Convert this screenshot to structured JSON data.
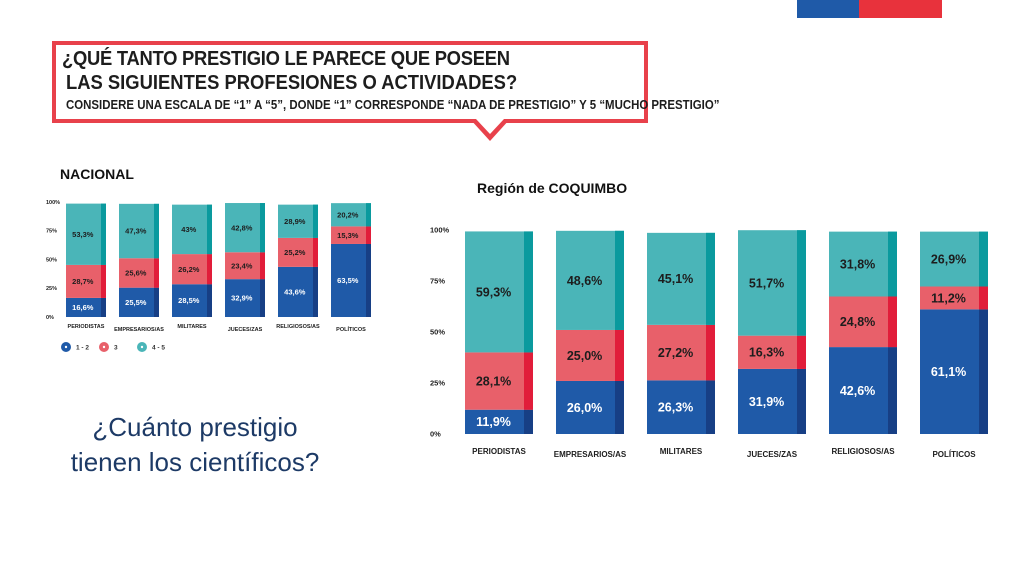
{
  "header": {
    "question_line1": "¿QUÉ TANTO PRESTIGIO LE PARECE QUE POSEEN",
    "question_line2": "LAS SIGUIENTES PROFESIONES O ACTIVIDADES?",
    "question_line3": "CONSIDERE UNA ESCALA DE “1” A “5”, DONDE “1” CORRESPONDE “NADA DE PRESTIGIO” Y 5 “MUCHO PRESTIGIO”"
  },
  "labels": {
    "nacional": "NACIONAL",
    "region": "Región de COQUIMBO",
    "big_question": "¿Cuánto prestigio tienen los científicos?"
  },
  "colors": {
    "low": "#1f5aa8",
    "low_dark": "#173f85",
    "mid": "#e8606a",
    "mid_dark": "#e11d3a",
    "high": "#4ab5b8",
    "high_dark": "#0a9a9e",
    "brand_blue": "#1f5aa8",
    "brand_red": "#e8323c"
  },
  "chart_data": [
    {
      "type": "bar",
      "stacked": true,
      "title": "NACIONAL",
      "categories": [
        "PERIODISTAS",
        "EMPRESARIOS/AS",
        "MILITARES",
        "JUECES/ZAS",
        "RELIGIOSOS/AS",
        "POLÍTICOS"
      ],
      "series": [
        {
          "name": "1 - 2",
          "values": [
            16.6,
            25.5,
            28.5,
            32.9,
            43.6,
            63.5
          ],
          "labels": [
            "16,6%",
            "25,5%",
            "28,5%",
            "32,9%",
            "43,6%",
            "63,5%"
          ]
        },
        {
          "name": "3",
          "values": [
            28.7,
            25.6,
            26.2,
            23.4,
            25.2,
            15.3
          ],
          "labels": [
            "28,7%",
            "25,6%",
            "26,2%",
            "23,4%",
            "25,2%",
            "15,3%"
          ]
        },
        {
          "name": "4 - 5",
          "values": [
            53.3,
            47.3,
            43.0,
            42.8,
            28.9,
            20.2
          ],
          "labels": [
            "53,3%",
            "47,3%",
            "43%",
            "42,8%",
            "28,9%",
            "20,2%"
          ]
        }
      ],
      "yticks": [
        "0%",
        "25%",
        "50%",
        "75%",
        "100%"
      ],
      "ylim": [
        0,
        100
      ],
      "legend": [
        "1 - 2",
        "3",
        "4 - 5"
      ],
      "legend_placement": "bottom"
    },
    {
      "type": "bar",
      "stacked": true,
      "title": "Región de COQUIMBO",
      "categories": [
        "PERIODISTAS",
        "EMPRESARIOS/AS",
        "MILITARES",
        "JUECES/ZAS",
        "RELIGIOSOS/AS",
        "POLÍTICOS"
      ],
      "series": [
        {
          "name": "1 - 2",
          "values": [
            11.9,
            26.0,
            26.3,
            31.9,
            42.6,
            61.1
          ],
          "labels": [
            "11,9%",
            "26,0%",
            "26,3%",
            "31,9%",
            "42,6%",
            "61,1%"
          ]
        },
        {
          "name": "3",
          "values": [
            28.1,
            25.0,
            27.2,
            16.3,
            24.8,
            11.2
          ],
          "labels": [
            "28,1%",
            "25,0%",
            "27,2%",
            "16,3%",
            "24,8%",
            "11,2%"
          ]
        },
        {
          "name": "4 - 5",
          "values": [
            59.3,
            48.6,
            45.1,
            51.7,
            31.8,
            26.9
          ],
          "labels": [
            "59,3%",
            "48,6%",
            "45,1%",
            "51,7%",
            "31,8%",
            "26,9%"
          ]
        }
      ],
      "yticks": [
        "0%",
        "25%",
        "50%",
        "75%",
        "100%"
      ],
      "ylim": [
        0,
        100
      ]
    }
  ]
}
